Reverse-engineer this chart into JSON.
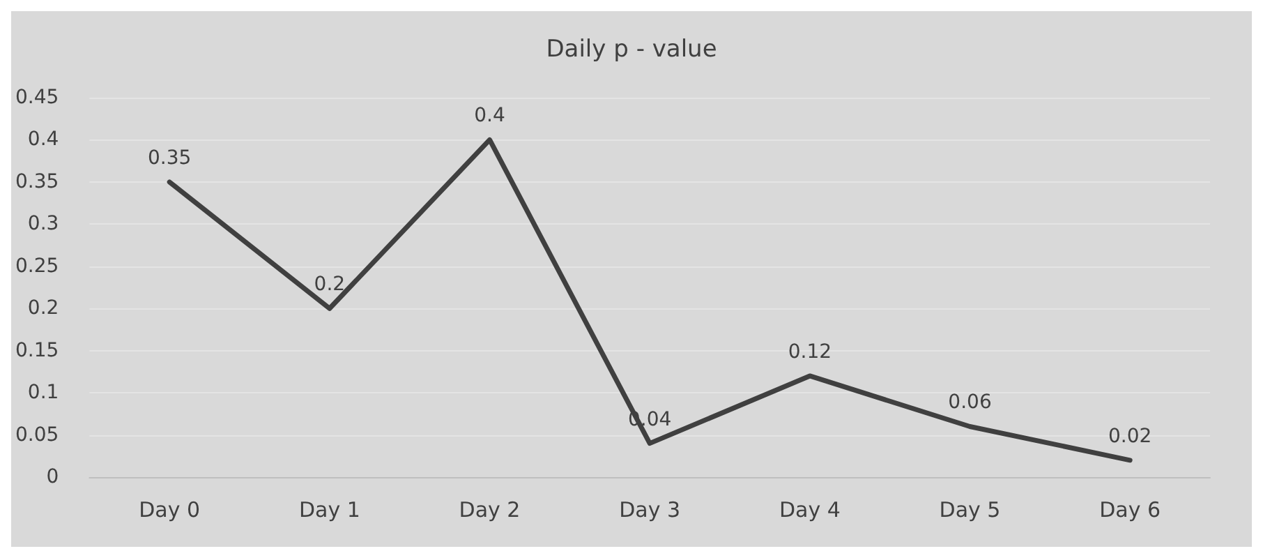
{
  "chart_data": {
    "type": "line",
    "title": "Daily p - value",
    "categories": [
      "Day 0",
      "Day 1",
      "Day 2",
      "Day 3",
      "Day 4",
      "Day 5",
      "Day 6"
    ],
    "series": [
      {
        "color": "#404040",
        "values": [
          0.35,
          0.2,
          0.4,
          0.04,
          0.12,
          0.06,
          0.02
        ]
      }
    ],
    "ylim": [
      0,
      0.45
    ],
    "yticks": [
      0,
      0.05,
      0.1,
      0.15,
      0.2,
      0.25,
      0.3,
      0.35,
      0.4,
      0.45
    ],
    "grid": "y",
    "marker": "none",
    "line_style": "solid",
    "data_labels": true
  }
}
